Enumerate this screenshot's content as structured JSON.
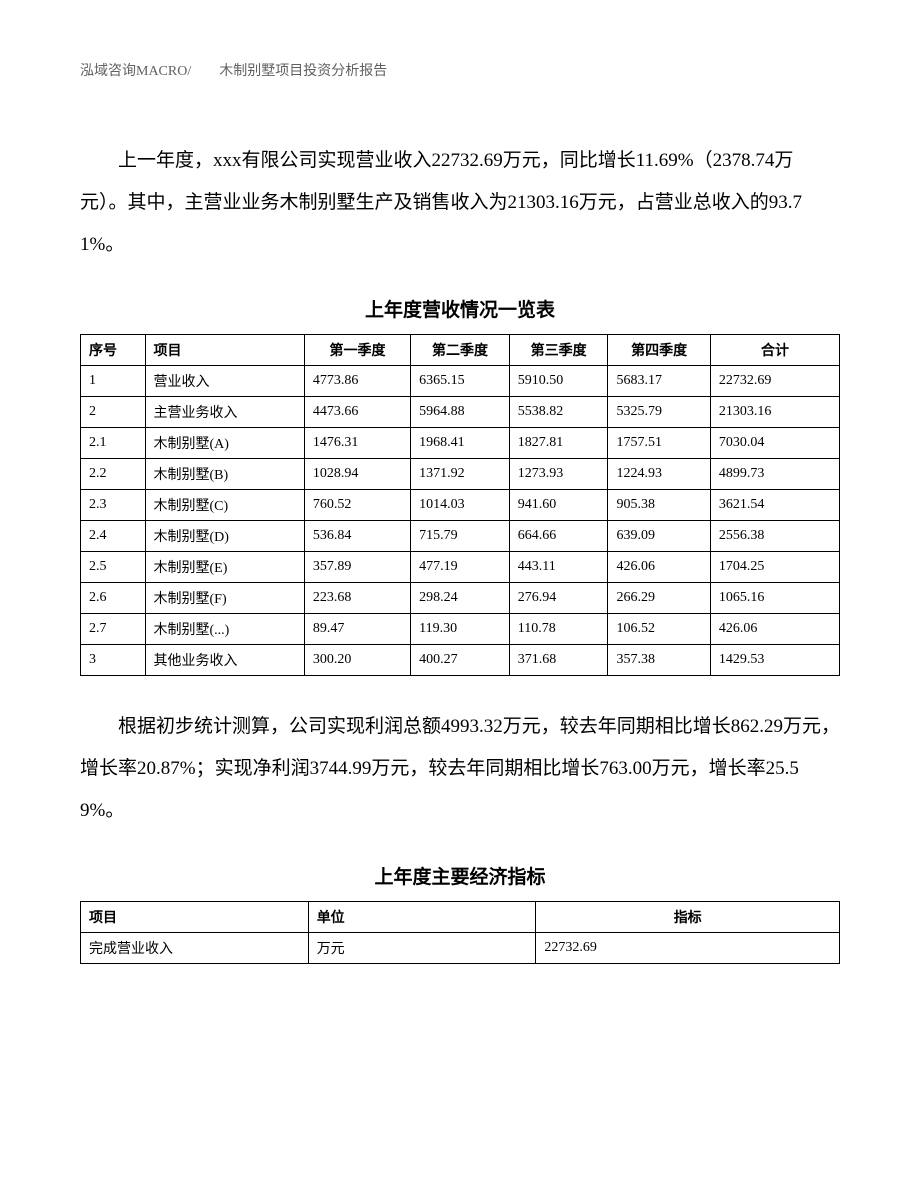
{
  "header": "泓域咨询MACRO/　　木制别墅项目投资分析报告",
  "paragraph1": "上一年度，xxx有限公司实现营业收入22732.69万元，同比增长11.69%（2378.74万元）。其中，主营业业务木制别墅生产及销售收入为21303.16万元，占营业总收入的93.71%。",
  "table1": {
    "title": "上年度营收情况一览表",
    "columns": [
      "序号",
      "项目",
      "第一季度",
      "第二季度",
      "第三季度",
      "第四季度",
      "合计"
    ],
    "rows": [
      [
        "1",
        "营业收入",
        "4773.86",
        "6365.15",
        "5910.50",
        "5683.17",
        "22732.69"
      ],
      [
        "2",
        "主营业务收入",
        "4473.66",
        "5964.88",
        "5538.82",
        "5325.79",
        "21303.16"
      ],
      [
        "2.1",
        "木制别墅(A)",
        "1476.31",
        "1968.41",
        "1827.81",
        "1757.51",
        "7030.04"
      ],
      [
        "2.2",
        "木制别墅(B)",
        "1028.94",
        "1371.92",
        "1273.93",
        "1224.93",
        "4899.73"
      ],
      [
        "2.3",
        "木制别墅(C)",
        "760.52",
        "1014.03",
        "941.60",
        "905.38",
        "3621.54"
      ],
      [
        "2.4",
        "木制别墅(D)",
        "536.84",
        "715.79",
        "664.66",
        "639.09",
        "2556.38"
      ],
      [
        "2.5",
        "木制别墅(E)",
        "357.89",
        "477.19",
        "443.11",
        "426.06",
        "1704.25"
      ],
      [
        "2.6",
        "木制别墅(F)",
        "223.68",
        "298.24",
        "276.94",
        "266.29",
        "1065.16"
      ],
      [
        "2.7",
        "木制别墅(...)",
        "89.47",
        "119.30",
        "110.78",
        "106.52",
        "426.06"
      ],
      [
        "3",
        "其他业务收入",
        "300.20",
        "400.27",
        "371.68",
        "357.38",
        "1429.53"
      ]
    ]
  },
  "paragraph2": "根据初步统计测算，公司实现利润总额4993.32万元，较去年同期相比增长862.29万元，增长率20.87%；实现净利润3744.99万元，较去年同期相比增长763.00万元，增长率25.59%。",
  "table2": {
    "title": "上年度主要经济指标",
    "columns": [
      "项目",
      "单位",
      "指标"
    ],
    "rows": [
      [
        "完成营业收入",
        "万元",
        "22732.69"
      ]
    ]
  }
}
